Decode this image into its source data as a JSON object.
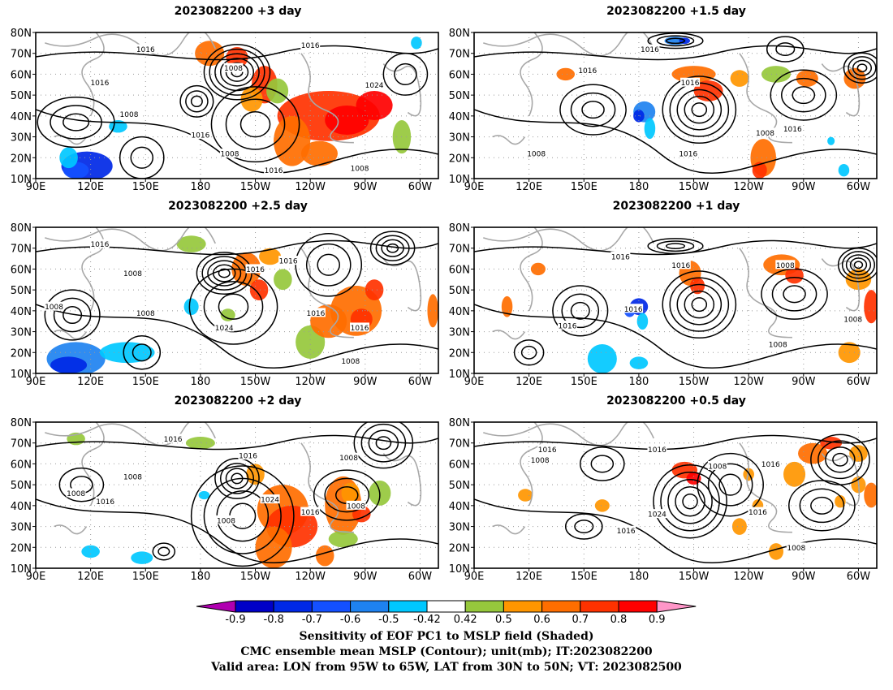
{
  "panels": [
    {
      "title": "2023082200  +3 day",
      "contour_labels": [
        "1016",
        "1016",
        "1008",
        "1016",
        "1008",
        "1024",
        "1016",
        "1008",
        "1016",
        "1008"
      ]
    },
    {
      "title": "2023082200  +1.5 day",
      "contour_labels": [
        "1016",
        "1016",
        "1016",
        "1008",
        "1016",
        "1016",
        "1008"
      ]
    },
    {
      "title": "2023082200  +2.5 day",
      "contour_labels": [
        "1016",
        "1008",
        "1016",
        "1016",
        "1008",
        "1008",
        "1024",
        "1016",
        "1016",
        "1008"
      ]
    },
    {
      "title": "2023082200  +1 day",
      "contour_labels": [
        "1016",
        "1016",
        "1008",
        "1016",
        "1008",
        "1016",
        "1008"
      ]
    },
    {
      "title": "2023082200  +2 day",
      "contour_labels": [
        "1016",
        "1016",
        "1008",
        "1008",
        "1008",
        "1016",
        "1024",
        "1008",
        "1016",
        "1008"
      ]
    },
    {
      "title": "2023082200  +0.5 day",
      "contour_labels": [
        "1016",
        "1008",
        "1016",
        "1008",
        "1016",
        "1024",
        "1016",
        "1016",
        "1008"
      ]
    }
  ],
  "lat_labels": [
    "80N",
    "70N",
    "60N",
    "50N",
    "40N",
    "30N",
    "20N",
    "10N"
  ],
  "lon_labels": [
    "90E",
    "120E",
    "150E",
    "180",
    "150W",
    "120W",
    "90W",
    "60W"
  ],
  "colorbar": {
    "labels": [
      "-0.9",
      "-0.8",
      "-0.7",
      "-0.6",
      "-0.5",
      "-0.42",
      "0.42",
      "0.5",
      "0.6",
      "0.7",
      "0.8",
      "0.9"
    ],
    "colors": [
      "#b000b0",
      "#0000c8",
      "#0028e6",
      "#1450ff",
      "#1e82f0",
      "#00c8ff",
      "#ffffff",
      "#96c83c",
      "#ff9600",
      "#ff6e00",
      "#ff3200",
      "#ff0000",
      "#ff96c8"
    ]
  },
  "footer": {
    "line1": "Sensitivity of EOF PC1 to MSLP field (Shaded)",
    "line2": "CMC ensemble mean MSLP (Contour); unit(mb); IT:2023082200",
    "line3": "Valid area: LON from 95W to 65W, LAT from 30N to 50N; VT: 2023082500"
  }
}
